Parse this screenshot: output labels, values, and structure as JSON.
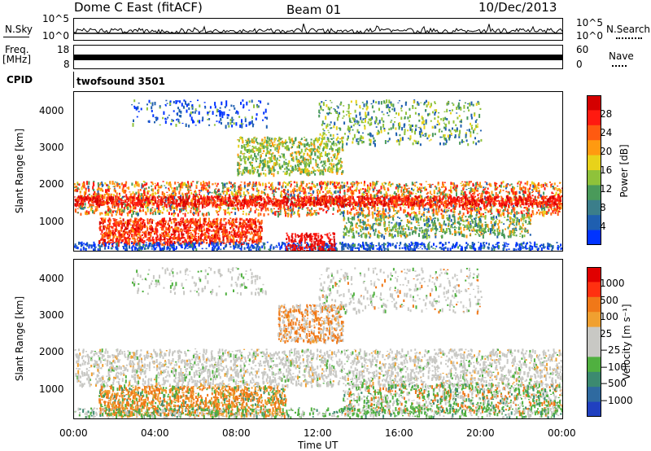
{
  "header": {
    "station": "Dome C East (fitACF)",
    "beam": "Beam 01",
    "date": "10/Dec/2013"
  },
  "nsky": {
    "label": "N.Sky",
    "ticks": [
      "10^5",
      "10^0"
    ],
    "right_label": "N.Search",
    "right_ticks": [
      "10^5",
      "10^0"
    ]
  },
  "freq": {
    "label": "Freq.",
    "unit": "[MHz]",
    "ticks": [
      "18",
      "8"
    ],
    "right_label": "Nave",
    "right_ticks": [
      "60",
      "0"
    ]
  },
  "cpid": {
    "label": "CPID",
    "value": "twofsound 3501"
  },
  "chart_data": [
    {
      "type": "heatmap",
      "name": "power",
      "ylabel": "Slant Range [km]",
      "y_ticks": [
        1000,
        2000,
        3000,
        4000
      ],
      "ylim": [
        200,
        4500
      ],
      "colorbar_label": "Power [dB]",
      "colorbar_ticks": [
        "28",
        "24",
        "20",
        "16",
        "12",
        "8",
        "4"
      ],
      "colors": [
        "#0033ff",
        "#1f5fb0",
        "#3b7e8a",
        "#4a9a5a",
        "#8fc23a",
        "#e8d21a",
        "#ff9a10",
        "#ff5a10",
        "#ff1a10",
        "#d40000"
      ]
    },
    {
      "type": "heatmap",
      "name": "velocity",
      "ylabel": "Slant Range [km]",
      "y_ticks": [
        1000,
        2000,
        3000,
        4000
      ],
      "ylim": [
        200,
        4500
      ],
      "colorbar_label": "Velocity [m s⁻¹]",
      "colorbar_ticks": [
        "1000",
        "500",
        "100",
        "25",
        "−25",
        "−100",
        "−500",
        "−1000"
      ],
      "colors": [
        "#2040c0",
        "#2f6aa0",
        "#3c8a70",
        "#50b040",
        "#c8c8c4",
        "#c8c8c4",
        "#f0a030",
        "#f07818",
        "#ff3010",
        "#e00000"
      ],
      "xlabel": "Time UT",
      "x_ticks": [
        "00:00",
        "04:00",
        "08:00",
        "12:00",
        "16:00",
        "20:00",
        "00:00"
      ]
    }
  ]
}
